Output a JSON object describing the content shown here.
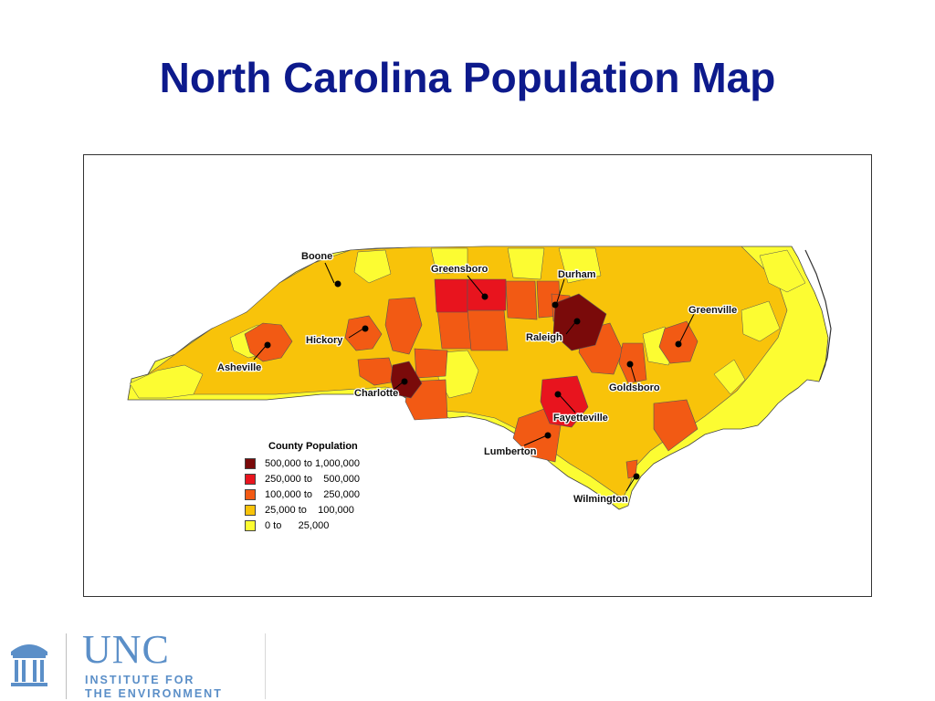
{
  "title": "North Carolina Population Map",
  "legend": {
    "title": "County Population",
    "items": [
      {
        "label": "500,000 to 1,000,000",
        "color": "#7a0a0a"
      },
      {
        "label": "250,000 to    500,000",
        "color": "#e8141e"
      },
      {
        "label": "100,000 to    250,000",
        "color": "#f25a14"
      },
      {
        "label": "25,000 to    100,000",
        "color": "#f8c30a"
      },
      {
        "label": "0 to      25,000",
        "color": "#fcfc32"
      }
    ]
  },
  "cities": {
    "boone": "Boone",
    "greensboro": "Greensboro",
    "durham": "Durham",
    "greenville": "Greenville",
    "hickory": "Hickory",
    "raleigh": "Raleigh",
    "asheville": "Asheville",
    "goldsboro": "Goldsboro",
    "charlotte": "Charlotte",
    "fayetteville": "Fayetteville",
    "lumberton": "Lumberton",
    "wilmington": "Wilmington"
  },
  "footer": {
    "wordmark": "UNC",
    "line1": "INSTITUTE FOR",
    "line2": "THE ENVIRONMENT",
    "brand_color": "#5b8fc8"
  }
}
